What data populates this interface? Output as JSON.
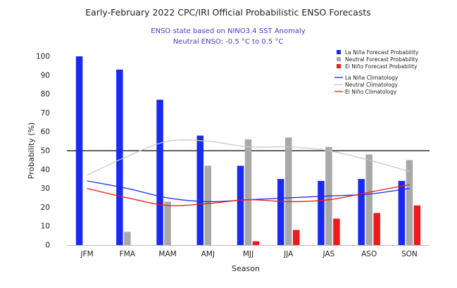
{
  "colors": {
    "la_nina": "#1a2af0",
    "neutral": "#a8a8a8",
    "el_nino": "#f01a1a",
    "neutral_line": "#c8c8c8",
    "subtitle": "#4a3cc8",
    "threshold": "#000000"
  },
  "chart_data": {
    "type": "bar",
    "title": "Early-February 2022 CPC/IRI Official Probabilistic ENSO Forecasts",
    "subtitle_line1": "ENSO state based on NINO3.4 SST Anomaly",
    "subtitle_line2": "Neutral ENSO: -0.5 °C to 0.5 °C",
    "xlabel": "Season",
    "ylabel": "Probability (%)",
    "ylim": [
      0,
      100
    ],
    "yticks": [
      0,
      10,
      20,
      30,
      40,
      50,
      60,
      70,
      80,
      90,
      100
    ],
    "threshold": 50,
    "legend_position": "top-right",
    "categories": [
      "JFM",
      "FMA",
      "MAM",
      "AMJ",
      "MJJ",
      "JJA",
      "JAS",
      "ASO",
      "SON"
    ],
    "series": [
      {
        "name": "La Niña Forecast Probability",
        "kind": "bar",
        "color_key": "la_nina",
        "values": [
          100,
          93,
          77,
          58,
          42,
          35,
          34,
          35,
          34
        ]
      },
      {
        "name": "Neutral Forecast Probability",
        "kind": "bar",
        "color_key": "neutral",
        "values": [
          0,
          7,
          23,
          42,
          56,
          57,
          52,
          48,
          45
        ]
      },
      {
        "name": "El Niño Forecast Probability",
        "kind": "bar",
        "color_key": "el_nino",
        "values": [
          0,
          0,
          0,
          0,
          2,
          8,
          14,
          17,
          21
        ]
      },
      {
        "name": "La Niña Climatology",
        "kind": "line",
        "color_key": "la_nina",
        "values": [
          34,
          30,
          25,
          23,
          24,
          25,
          26,
          27,
          30
        ]
      },
      {
        "name": "Neutral Climatology",
        "kind": "line",
        "color_key": "neutral_line",
        "values": [
          37,
          47,
          55,
          55,
          52,
          52,
          50,
          45,
          39
        ]
      },
      {
        "name": "El Niño Climatology",
        "kind": "line",
        "color_key": "el_nino",
        "values": [
          30,
          25,
          21,
          22,
          24,
          23,
          24,
          28,
          32
        ]
      }
    ]
  }
}
